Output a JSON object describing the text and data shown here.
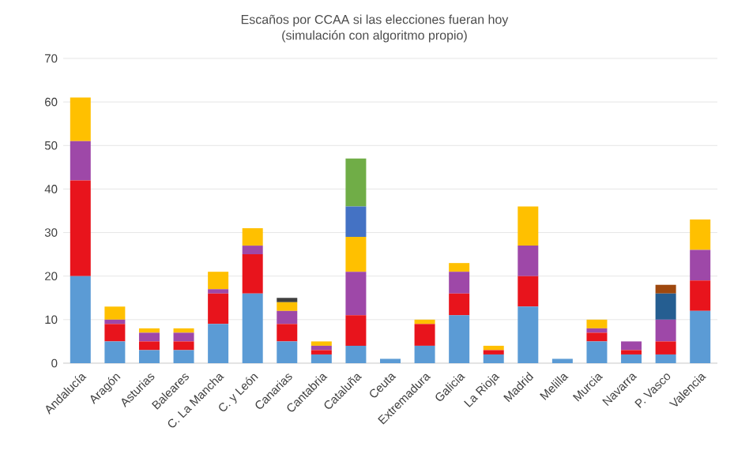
{
  "chart_data": {
    "type": "bar",
    "stacked": true,
    "title": "Escaños por CCAA si las elecciones fueran hoy",
    "subtitle": "(simulación con algoritmo propio)",
    "categories": [
      "Andalucía",
      "Aragón",
      "Asturias",
      "Baleares",
      "C. La Mancha",
      "C. y León",
      "Canarias",
      "Cantabria",
      "Cataluña",
      "Ceuta",
      "Extremadura",
      "Galicia",
      "La Rioja",
      "Madrid",
      "Melilla",
      "Murcia",
      "Navarra",
      "P. Vasco",
      "Valencia"
    ],
    "series": [
      {
        "color": "#5b9bd5",
        "values": [
          20,
          5,
          3,
          3,
          9,
          16,
          5,
          2,
          4,
          1,
          4,
          11,
          2,
          13,
          1,
          5,
          2,
          2,
          12
        ]
      },
      {
        "color": "#e8141c",
        "values": [
          22,
          4,
          2,
          2,
          7,
          9,
          4,
          1,
          7,
          null,
          5,
          5,
          1,
          7,
          null,
          2,
          1,
          3,
          7
        ]
      },
      {
        "color": "#9e48a8",
        "values": [
          9,
          1,
          2,
          2,
          1,
          2,
          3,
          1,
          10,
          null,
          null,
          5,
          null,
          7,
          null,
          1,
          2,
          5,
          7
        ]
      },
      {
        "color": "#ffc000",
        "values": [
          10,
          3,
          1,
          1,
          4,
          4,
          2,
          1,
          8,
          null,
          1,
          2,
          1,
          9,
          null,
          2,
          null,
          null,
          7
        ]
      },
      {
        "color": "#404040",
        "values": [
          null,
          null,
          null,
          null,
          null,
          null,
          1,
          null,
          null,
          null,
          null,
          null,
          null,
          null,
          null,
          null,
          null,
          null,
          null
        ]
      },
      {
        "color": "#4472c4",
        "values": [
          null,
          null,
          null,
          null,
          null,
          null,
          null,
          null,
          7,
          null,
          null,
          null,
          null,
          null,
          null,
          null,
          null,
          null,
          null
        ]
      },
      {
        "color": "#70ad47",
        "values": [
          null,
          null,
          null,
          null,
          null,
          null,
          null,
          null,
          11,
          null,
          null,
          null,
          null,
          null,
          null,
          null,
          null,
          null,
          null
        ]
      },
      {
        "color": "#255e91",
        "values": [
          null,
          null,
          null,
          null,
          null,
          null,
          null,
          null,
          null,
          null,
          null,
          null,
          null,
          null,
          null,
          null,
          null,
          6,
          null
        ]
      },
      {
        "color": "#9e480e",
        "values": [
          null,
          null,
          null,
          null,
          null,
          null,
          null,
          null,
          null,
          null,
          null,
          null,
          null,
          null,
          null,
          null,
          null,
          2,
          null
        ]
      }
    ],
    "ylim": [
      0,
      70
    ],
    "yticks": [
      0,
      10,
      20,
      30,
      40,
      50,
      60,
      70
    ],
    "grid": "y"
  }
}
